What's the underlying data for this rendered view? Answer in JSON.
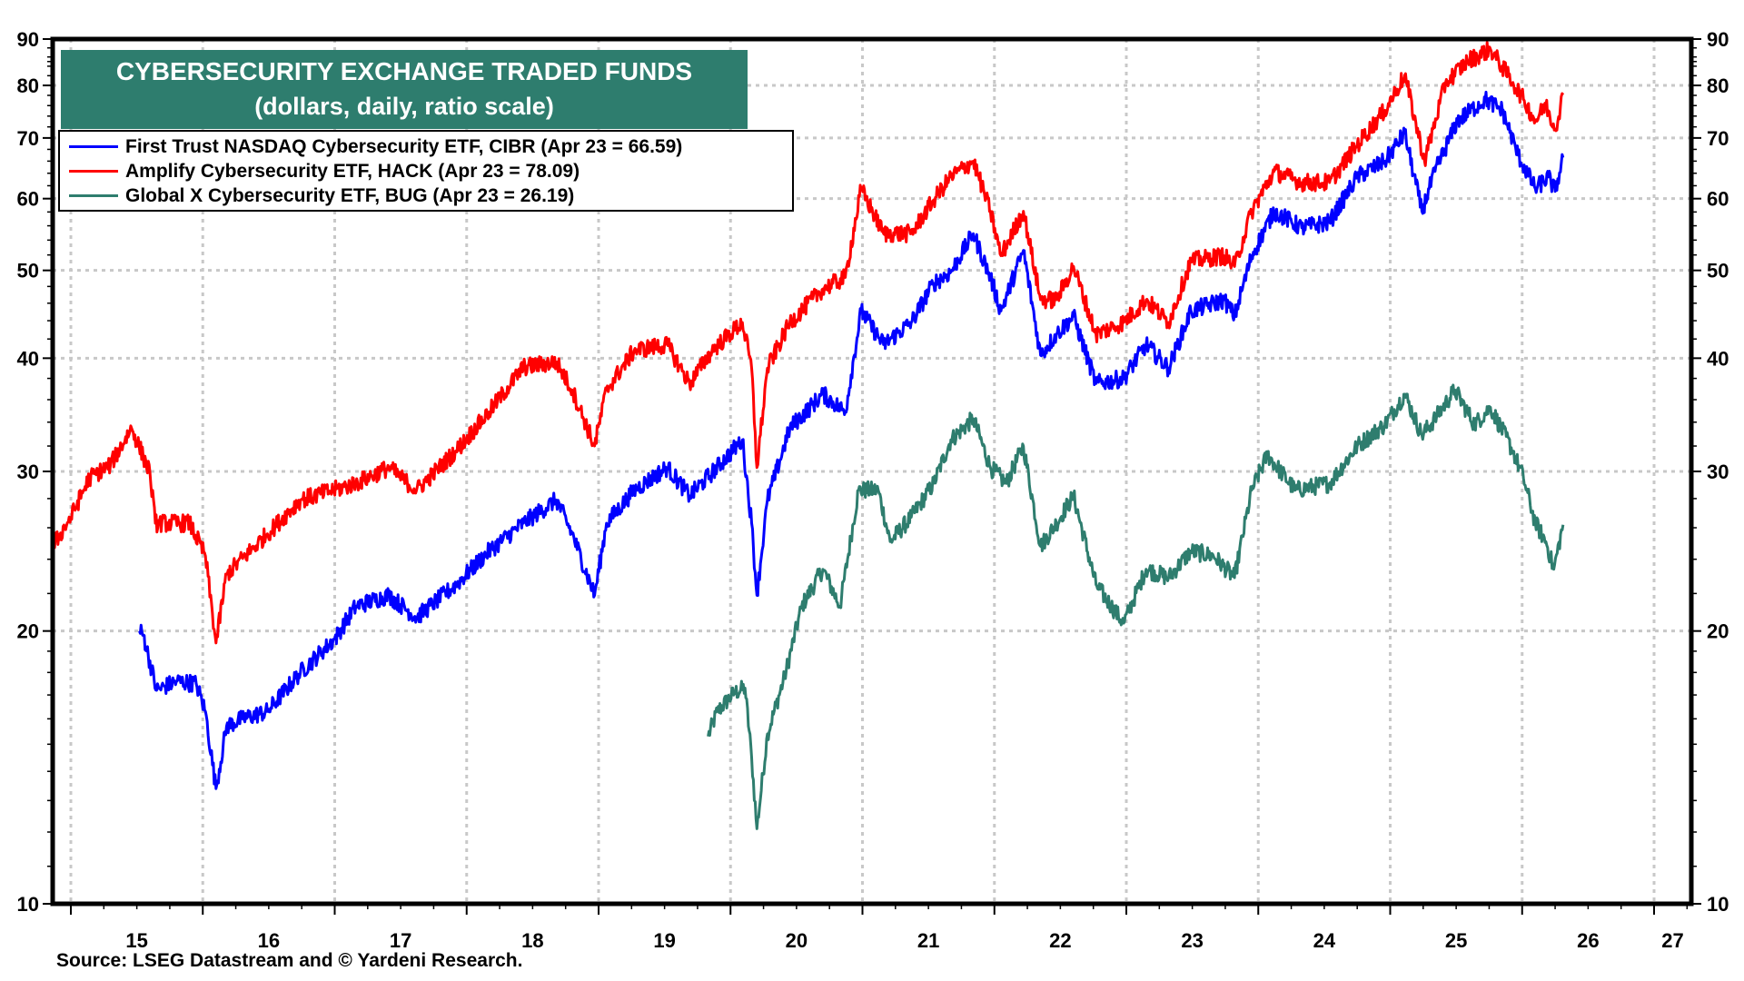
{
  "title": {
    "line1": "CYBERSECURITY EXCHANGE TRADED FUNDS",
    "line2": "(dollars, daily, ratio scale)"
  },
  "legend": [
    {
      "label": "First Trust NASDAQ Cybersecurity ETF, CIBR (Apr 23 = 66.59)",
      "color": "#0000ff"
    },
    {
      "label": "Amplify Cybersecurity ETF, HACK (Apr 23 = 78.09)",
      "color": "#ff0000"
    },
    {
      "label": "Global X Cybersecurity ETF, BUG (Apr 23 = 26.19)",
      "color": "#2e7d6e"
    }
  ],
  "source": "Source: LSEG Datastream and © Yardeni Research.",
  "colors": {
    "title_bg": "#2e7d6e",
    "grid": "#c8c8c8",
    "axis": "#000000"
  },
  "chart_data": {
    "type": "line",
    "title": "CYBERSECURITY EXCHANGE TRADED FUNDS",
    "subtitle": "(dollars, daily, ratio scale)",
    "xlabel": "",
    "ylabel": "dollars",
    "yscale": "log",
    "ylim": [
      10,
      90
    ],
    "xlim": [
      2014.86,
      2027.3
    ],
    "yticks": [
      10,
      20,
      30,
      40,
      50,
      60,
      70,
      80,
      90
    ],
    "xtick_labels": [
      "15",
      "16",
      "17",
      "18",
      "19",
      "20",
      "21",
      "22",
      "23",
      "24",
      "25",
      "26",
      "27"
    ],
    "grid": true,
    "legend_position": "top-left",
    "source": "Source: LSEG Datastream and © Yardeni Research.",
    "series": [
      {
        "name": "First Trust NASDAQ Cybersecurity ETF, CIBR",
        "ticker": "CIBR",
        "last_label": "Apr 23 = 66.59",
        "last_value": 66.59,
        "color": "#0000ff",
        "points": [
          [
            2015.52,
            20.0
          ],
          [
            2015.55,
            19.8
          ],
          [
            2015.65,
            17.2
          ],
          [
            2015.8,
            17.6
          ],
          [
            2015.95,
            17.5
          ],
          [
            2016.02,
            16.3
          ],
          [
            2016.1,
            13.4
          ],
          [
            2016.18,
            15.7
          ],
          [
            2016.3,
            16.0
          ],
          [
            2016.49,
            16.3
          ],
          [
            2016.74,
            18.0
          ],
          [
            2017.0,
            19.6
          ],
          [
            2017.16,
            21.3
          ],
          [
            2017.41,
            21.9
          ],
          [
            2017.62,
            20.7
          ],
          [
            2017.92,
            22.5
          ],
          [
            2018.17,
            24.5
          ],
          [
            2018.43,
            26.3
          ],
          [
            2018.68,
            27.9
          ],
          [
            2018.8,
            25.6
          ],
          [
            2018.97,
            21.9
          ],
          [
            2019.06,
            26.3
          ],
          [
            2019.27,
            28.6
          ],
          [
            2019.52,
            30.3
          ],
          [
            2019.69,
            28.2
          ],
          [
            2019.86,
            29.9
          ],
          [
            2020.09,
            32.5
          ],
          [
            2020.16,
            26.3
          ],
          [
            2020.2,
            21.9
          ],
          [
            2020.28,
            27.9
          ],
          [
            2020.45,
            33.5
          ],
          [
            2020.7,
            36.5
          ],
          [
            2020.87,
            34.9
          ],
          [
            2020.99,
            45.1
          ],
          [
            2021.16,
            41.4
          ],
          [
            2021.37,
            43.8
          ],
          [
            2021.54,
            48.4
          ],
          [
            2021.67,
            49.8
          ],
          [
            2021.84,
            54.9
          ],
          [
            2021.97,
            49.1
          ],
          [
            2022.05,
            45.1
          ],
          [
            2022.22,
            52.6
          ],
          [
            2022.35,
            40.3
          ],
          [
            2022.47,
            42.5
          ],
          [
            2022.6,
            44.5
          ],
          [
            2022.77,
            37.5
          ],
          [
            2022.98,
            38.0
          ],
          [
            2023.15,
            41.4
          ],
          [
            2023.32,
            39.0
          ],
          [
            2023.49,
            45.1
          ],
          [
            2023.74,
            46.4
          ],
          [
            2023.82,
            44.5
          ],
          [
            2023.95,
            51.9
          ],
          [
            2024.12,
            58.1
          ],
          [
            2024.33,
            55.7
          ],
          [
            2024.54,
            56.5
          ],
          [
            2024.75,
            63.4
          ],
          [
            2024.96,
            66.0
          ],
          [
            2025.11,
            70.9
          ],
          [
            2025.24,
            58.1
          ],
          [
            2025.34,
            64.3
          ],
          [
            2025.51,
            73.1
          ],
          [
            2025.72,
            77.2
          ],
          [
            2025.85,
            75.1
          ],
          [
            2025.97,
            67.0
          ],
          [
            2026.1,
            61.5
          ],
          [
            2026.2,
            63.4
          ],
          [
            2026.25,
            61.1
          ],
          [
            2026.31,
            66.59
          ]
        ]
      },
      {
        "name": "Amplify Cybersecurity ETF, HACK",
        "ticker": "HACK",
        "last_label": "Apr 23 = 78.09",
        "last_value": 78.09,
        "color": "#ff0000",
        "points": [
          [
            2014.87,
            24.9
          ],
          [
            2015.0,
            26.7
          ],
          [
            2015.14,
            29.5
          ],
          [
            2015.3,
            30.5
          ],
          [
            2015.46,
            33.5
          ],
          [
            2015.6,
            29.9
          ],
          [
            2015.64,
            26.3
          ],
          [
            2015.9,
            26.3
          ],
          [
            2016.02,
            24.2
          ],
          [
            2016.1,
            19.4
          ],
          [
            2016.18,
            23.1
          ],
          [
            2016.49,
            25.6
          ],
          [
            2016.74,
            27.9
          ],
          [
            2017.16,
            29.1
          ],
          [
            2017.41,
            30.3
          ],
          [
            2017.62,
            28.6
          ],
          [
            2017.92,
            31.6
          ],
          [
            2018.17,
            34.9
          ],
          [
            2018.43,
            39.1
          ],
          [
            2018.68,
            39.6
          ],
          [
            2018.8,
            36.9
          ],
          [
            2018.97,
            32.0
          ],
          [
            2019.06,
            36.9
          ],
          [
            2019.27,
            40.8
          ],
          [
            2019.52,
            41.4
          ],
          [
            2019.69,
            37.5
          ],
          [
            2019.86,
            40.8
          ],
          [
            2020.09,
            43.8
          ],
          [
            2020.16,
            39.0
          ],
          [
            2020.2,
            30.3
          ],
          [
            2020.28,
            39.0
          ],
          [
            2020.45,
            43.8
          ],
          [
            2020.7,
            47.7
          ],
          [
            2020.87,
            49.1
          ],
          [
            2020.99,
            61.5
          ],
          [
            2021.16,
            54.9
          ],
          [
            2021.37,
            54.9
          ],
          [
            2021.54,
            59.8
          ],
          [
            2021.67,
            63.4
          ],
          [
            2021.84,
            66.0
          ],
          [
            2021.97,
            58.1
          ],
          [
            2022.05,
            51.9
          ],
          [
            2022.22,
            58.1
          ],
          [
            2022.35,
            46.4
          ],
          [
            2022.47,
            46.4
          ],
          [
            2022.6,
            50.5
          ],
          [
            2022.77,
            42.5
          ],
          [
            2022.98,
            43.8
          ],
          [
            2023.15,
            46.4
          ],
          [
            2023.32,
            43.8
          ],
          [
            2023.49,
            51.2
          ],
          [
            2023.74,
            51.9
          ],
          [
            2023.82,
            50.5
          ],
          [
            2023.95,
            58.1
          ],
          [
            2024.12,
            64.3
          ],
          [
            2024.33,
            62.5
          ],
          [
            2024.54,
            62.5
          ],
          [
            2024.75,
            68.8
          ],
          [
            2024.96,
            75.1
          ],
          [
            2025.11,
            82.1
          ],
          [
            2025.26,
            66.0
          ],
          [
            2025.42,
            80.6
          ],
          [
            2025.59,
            85.2
          ],
          [
            2025.76,
            87.7
          ],
          [
            2025.93,
            80.6
          ],
          [
            2026.01,
            77.2
          ],
          [
            2026.1,
            73.1
          ],
          [
            2026.18,
            76.2
          ],
          [
            2026.25,
            71.6
          ],
          [
            2026.31,
            78.09
          ]
        ]
      },
      {
        "name": "Global X Cybersecurity ETF, BUG",
        "ticker": "BUG",
        "last_label": "Apr 23 = 26.19",
        "last_value": 26.19,
        "color": "#2e7d6e",
        "points": [
          [
            2019.83,
            15.3
          ],
          [
            2019.9,
            16.3
          ],
          [
            2020.03,
            17.1
          ],
          [
            2020.11,
            17.3
          ],
          [
            2020.16,
            14.5
          ],
          [
            2020.2,
            12.1
          ],
          [
            2020.28,
            15.4
          ],
          [
            2020.41,
            17.8
          ],
          [
            2020.54,
            21.3
          ],
          [
            2020.7,
            23.4
          ],
          [
            2020.83,
            21.3
          ],
          [
            2020.97,
            28.6
          ],
          [
            2021.12,
            28.6
          ],
          [
            2021.21,
            25.1
          ],
          [
            2021.37,
            26.7
          ],
          [
            2021.54,
            29.1
          ],
          [
            2021.67,
            32.5
          ],
          [
            2021.84,
            34.3
          ],
          [
            2021.97,
            30.3
          ],
          [
            2022.09,
            29.1
          ],
          [
            2022.22,
            32.0
          ],
          [
            2022.35,
            24.8
          ],
          [
            2022.47,
            26.3
          ],
          [
            2022.6,
            28.2
          ],
          [
            2022.77,
            22.5
          ],
          [
            2022.98,
            20.4
          ],
          [
            2023.15,
            23.4
          ],
          [
            2023.32,
            22.9
          ],
          [
            2023.49,
            24.5
          ],
          [
            2023.66,
            24.2
          ],
          [
            2023.82,
            22.9
          ],
          [
            2023.95,
            28.6
          ],
          [
            2024.07,
            31.3
          ],
          [
            2024.28,
            28.6
          ],
          [
            2024.54,
            29.1
          ],
          [
            2024.75,
            32.0
          ],
          [
            2024.96,
            33.8
          ],
          [
            2025.11,
            36.5
          ],
          [
            2025.24,
            32.9
          ],
          [
            2025.34,
            34.3
          ],
          [
            2025.49,
            36.9
          ],
          [
            2025.64,
            33.8
          ],
          [
            2025.76,
            35.3
          ],
          [
            2025.93,
            31.6
          ],
          [
            2026.01,
            29.5
          ],
          [
            2026.1,
            26.3
          ],
          [
            2026.18,
            25.1
          ],
          [
            2026.24,
            23.4
          ],
          [
            2026.31,
            26.19
          ]
        ]
      }
    ]
  }
}
